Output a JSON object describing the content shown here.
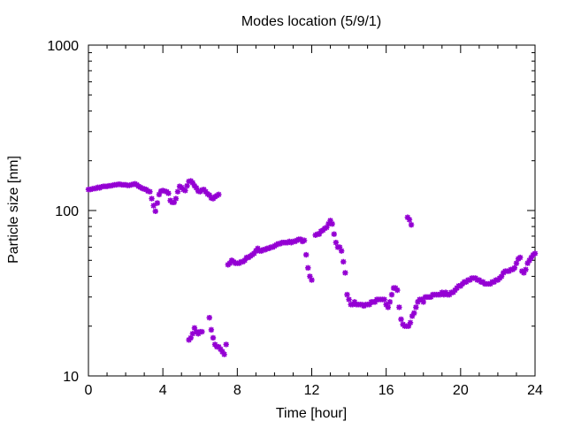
{
  "chart_data": {
    "type": "scatter",
    "title": "Modes location (5/9/1)",
    "xlabel": "Time [hour]",
    "ylabel": "Particle size [nm]",
    "xlim": [
      0,
      24
    ],
    "ylim": [
      10,
      1000
    ],
    "yscale": "log",
    "x_ticks": [
      0,
      4,
      8,
      12,
      16,
      20,
      24
    ],
    "x_tick_labels": [
      "0",
      "4",
      "8",
      "12",
      "16",
      "20",
      "24"
    ],
    "y_ticks": [
      10,
      100,
      1000
    ],
    "y_tick_labels": [
      "10",
      "100",
      "1000"
    ],
    "grid": false,
    "legend": "none",
    "marker_color": "#9400d3",
    "marker": "asterisk",
    "series": [
      {
        "points": [
          [
            0.0,
            134
          ],
          [
            0.1,
            134
          ],
          [
            0.2,
            135
          ],
          [
            0.3,
            136
          ],
          [
            0.4,
            136
          ],
          [
            0.5,
            138
          ],
          [
            0.6,
            137
          ],
          [
            0.7,
            139
          ],
          [
            0.8,
            140
          ],
          [
            0.9,
            140
          ],
          [
            1.0,
            140
          ],
          [
            1.1,
            141
          ],
          [
            1.2,
            141
          ],
          [
            1.3,
            142
          ],
          [
            1.4,
            143
          ],
          [
            1.5,
            143
          ],
          [
            1.6,
            144
          ],
          [
            1.7,
            144
          ],
          [
            1.8,
            143
          ],
          [
            1.9,
            143
          ],
          [
            2.0,
            143
          ],
          [
            2.1,
            142
          ],
          [
            2.2,
            142
          ],
          [
            2.3,
            143
          ],
          [
            2.4,
            144
          ],
          [
            2.5,
            145
          ],
          [
            2.6,
            143
          ],
          [
            2.7,
            140
          ],
          [
            2.8,
            138
          ],
          [
            2.9,
            136
          ],
          [
            3.0,
            135
          ],
          [
            3.1,
            134
          ],
          [
            3.2,
            131
          ],
          [
            3.3,
            130
          ],
          [
            3.4,
            118
          ],
          [
            3.5,
            107
          ],
          [
            3.6,
            99
          ],
          [
            3.7,
            111
          ],
          [
            3.8,
            125
          ],
          [
            3.9,
            131
          ],
          [
            4.0,
            132
          ],
          [
            4.1,
            131
          ],
          [
            4.2,
            130
          ],
          [
            4.3,
            127
          ],
          [
            4.4,
            115
          ],
          [
            4.5,
            112
          ],
          [
            4.6,
            112
          ],
          [
            4.7,
            118
          ],
          [
            4.8,
            130
          ],
          [
            4.9,
            140
          ],
          [
            5.0,
            138
          ],
          [
            5.1,
            134
          ],
          [
            5.2,
            132
          ],
          [
            5.3,
            141
          ],
          [
            5.4,
            150
          ],
          [
            5.5,
            151
          ],
          [
            5.6,
            147
          ],
          [
            5.7,
            141
          ],
          [
            5.8,
            137
          ],
          [
            5.9,
            131
          ],
          [
            6.0,
            130
          ],
          [
            6.1,
            133
          ],
          [
            6.2,
            134
          ],
          [
            6.3,
            130
          ],
          [
            6.4,
            126
          ],
          [
            6.5,
            124
          ],
          [
            6.6,
            119
          ],
          [
            6.7,
            118
          ],
          [
            6.8,
            121
          ],
          [
            6.9,
            123
          ],
          [
            7.0,
            125
          ],
          [
            5.4,
            16.5
          ],
          [
            5.5,
            17
          ],
          [
            5.6,
            18
          ],
          [
            5.7,
            19.5
          ],
          [
            5.8,
            18.5
          ],
          [
            5.9,
            18
          ],
          [
            6.0,
            18.5
          ],
          [
            6.1,
            18.5
          ],
          [
            6.5,
            22.5
          ],
          [
            6.6,
            19
          ],
          [
            6.7,
            17
          ],
          [
            6.8,
            15.5
          ],
          [
            6.9,
            15
          ],
          [
            7.0,
            15
          ],
          [
            7.1,
            14.5
          ],
          [
            7.2,
            14
          ],
          [
            7.3,
            13.5
          ],
          [
            7.4,
            15.5
          ],
          [
            7.5,
            47
          ],
          [
            7.6,
            48
          ],
          [
            7.7,
            50
          ],
          [
            7.8,
            49
          ],
          [
            7.9,
            48
          ],
          [
            8.0,
            48
          ],
          [
            8.1,
            48
          ],
          [
            8.2,
            49
          ],
          [
            8.3,
            49
          ],
          [
            8.4,
            50
          ],
          [
            8.5,
            52
          ],
          [
            8.6,
            52
          ],
          [
            8.7,
            53
          ],
          [
            8.8,
            54
          ],
          [
            8.9,
            55
          ],
          [
            9.0,
            57
          ],
          [
            9.1,
            59
          ],
          [
            9.2,
            57
          ],
          [
            9.3,
            57
          ],
          [
            9.4,
            58
          ],
          [
            9.5,
            58
          ],
          [
            9.6,
            59
          ],
          [
            9.7,
            59
          ],
          [
            9.8,
            60
          ],
          [
            9.9,
            60
          ],
          [
            10.0,
            61
          ],
          [
            10.1,
            62
          ],
          [
            10.2,
            63
          ],
          [
            10.3,
            63
          ],
          [
            10.4,
            64
          ],
          [
            10.5,
            64
          ],
          [
            10.6,
            64
          ],
          [
            10.7,
            64
          ],
          [
            10.8,
            65
          ],
          [
            10.9,
            64
          ],
          [
            11.0,
            65
          ],
          [
            11.1,
            65
          ],
          [
            11.2,
            66
          ],
          [
            11.3,
            67
          ],
          [
            11.4,
            67
          ],
          [
            11.5,
            65
          ],
          [
            11.6,
            66
          ],
          [
            11.7,
            54
          ],
          [
            11.8,
            45
          ],
          [
            11.9,
            40
          ],
          [
            12.0,
            38
          ],
          [
            12.2,
            71
          ],
          [
            12.3,
            72
          ],
          [
            12.4,
            72
          ],
          [
            12.5,
            75
          ],
          [
            12.6,
            76
          ],
          [
            12.7,
            78
          ],
          [
            12.8,
            79
          ],
          [
            12.9,
            83
          ],
          [
            13.0,
            87
          ],
          [
            13.1,
            83
          ],
          [
            13.2,
            72
          ],
          [
            13.3,
            64
          ],
          [
            13.4,
            60
          ],
          [
            13.5,
            60
          ],
          [
            13.6,
            57
          ],
          [
            13.7,
            49
          ],
          [
            13.8,
            42
          ],
          [
            13.9,
            31
          ],
          [
            14.0,
            29
          ],
          [
            14.1,
            27
          ],
          [
            14.2,
            27
          ],
          [
            14.3,
            28
          ],
          [
            14.4,
            27
          ],
          [
            14.5,
            27
          ],
          [
            14.6,
            27
          ],
          [
            14.7,
            27
          ],
          [
            14.8,
            26.5
          ],
          [
            14.9,
            27
          ],
          [
            15.0,
            27
          ],
          [
            15.1,
            27
          ],
          [
            15.2,
            28
          ],
          [
            15.3,
            28
          ],
          [
            15.4,
            28
          ],
          [
            15.5,
            29
          ],
          [
            15.6,
            29
          ],
          [
            15.7,
            29
          ],
          [
            15.8,
            29
          ],
          [
            15.9,
            29
          ],
          [
            16.0,
            27
          ],
          [
            16.1,
            26
          ],
          [
            16.2,
            28
          ],
          [
            16.3,
            31
          ],
          [
            16.4,
            34
          ],
          [
            16.5,
            34
          ],
          [
            16.6,
            33
          ],
          [
            16.7,
            26
          ],
          [
            16.8,
            22
          ],
          [
            16.9,
            20.5
          ],
          [
            17.0,
            20
          ],
          [
            17.1,
            20
          ],
          [
            17.2,
            20
          ],
          [
            17.3,
            21
          ],
          [
            17.4,
            23
          ],
          [
            17.5,
            24
          ],
          [
            17.6,
            26
          ],
          [
            17.7,
            28
          ],
          [
            17.8,
            29
          ],
          [
            17.9,
            29
          ],
          [
            18.0,
            28
          ],
          [
            18.1,
            30
          ],
          [
            17.15,
            91
          ],
          [
            17.25,
            88
          ],
          [
            17.35,
            82
          ],
          [
            18.2,
            30
          ],
          [
            18.3,
            30
          ],
          [
            18.4,
            30
          ],
          [
            18.5,
            31
          ],
          [
            18.6,
            31
          ],
          [
            18.7,
            31
          ],
          [
            18.8,
            31
          ],
          [
            18.9,
            31
          ],
          [
            19.0,
            32
          ],
          [
            19.1,
            31
          ],
          [
            19.2,
            32
          ],
          [
            19.3,
            31
          ],
          [
            19.4,
            31
          ],
          [
            19.5,
            32
          ],
          [
            19.6,
            32
          ],
          [
            19.7,
            33
          ],
          [
            19.8,
            34
          ],
          [
            19.9,
            35
          ],
          [
            20.0,
            35
          ],
          [
            20.1,
            36
          ],
          [
            20.2,
            37
          ],
          [
            20.3,
            37
          ],
          [
            20.4,
            38
          ],
          [
            20.5,
            38
          ],
          [
            20.6,
            39
          ],
          [
            20.7,
            39
          ],
          [
            20.8,
            39
          ],
          [
            20.9,
            38
          ],
          [
            21.0,
            38
          ],
          [
            21.1,
            37
          ],
          [
            21.2,
            37
          ],
          [
            21.3,
            36
          ],
          [
            21.4,
            36
          ],
          [
            21.5,
            36
          ],
          [
            21.6,
            36
          ],
          [
            21.7,
            37
          ],
          [
            21.8,
            37
          ],
          [
            21.9,
            38
          ],
          [
            22.0,
            38
          ],
          [
            22.1,
            39
          ],
          [
            22.2,
            40
          ],
          [
            22.3,
            42
          ],
          [
            22.4,
            43
          ],
          [
            22.5,
            43
          ],
          [
            22.6,
            43
          ],
          [
            22.7,
            44
          ],
          [
            22.8,
            44
          ],
          [
            22.9,
            45
          ],
          [
            23.0,
            48
          ],
          [
            23.1,
            51
          ],
          [
            23.2,
            52
          ],
          [
            23.3,
            43
          ],
          [
            23.4,
            42
          ],
          [
            23.5,
            44
          ],
          [
            23.6,
            48
          ],
          [
            23.7,
            50
          ],
          [
            23.8,
            52
          ],
          [
            23.9,
            54
          ],
          [
            24.0,
            55
          ]
        ]
      }
    ]
  }
}
